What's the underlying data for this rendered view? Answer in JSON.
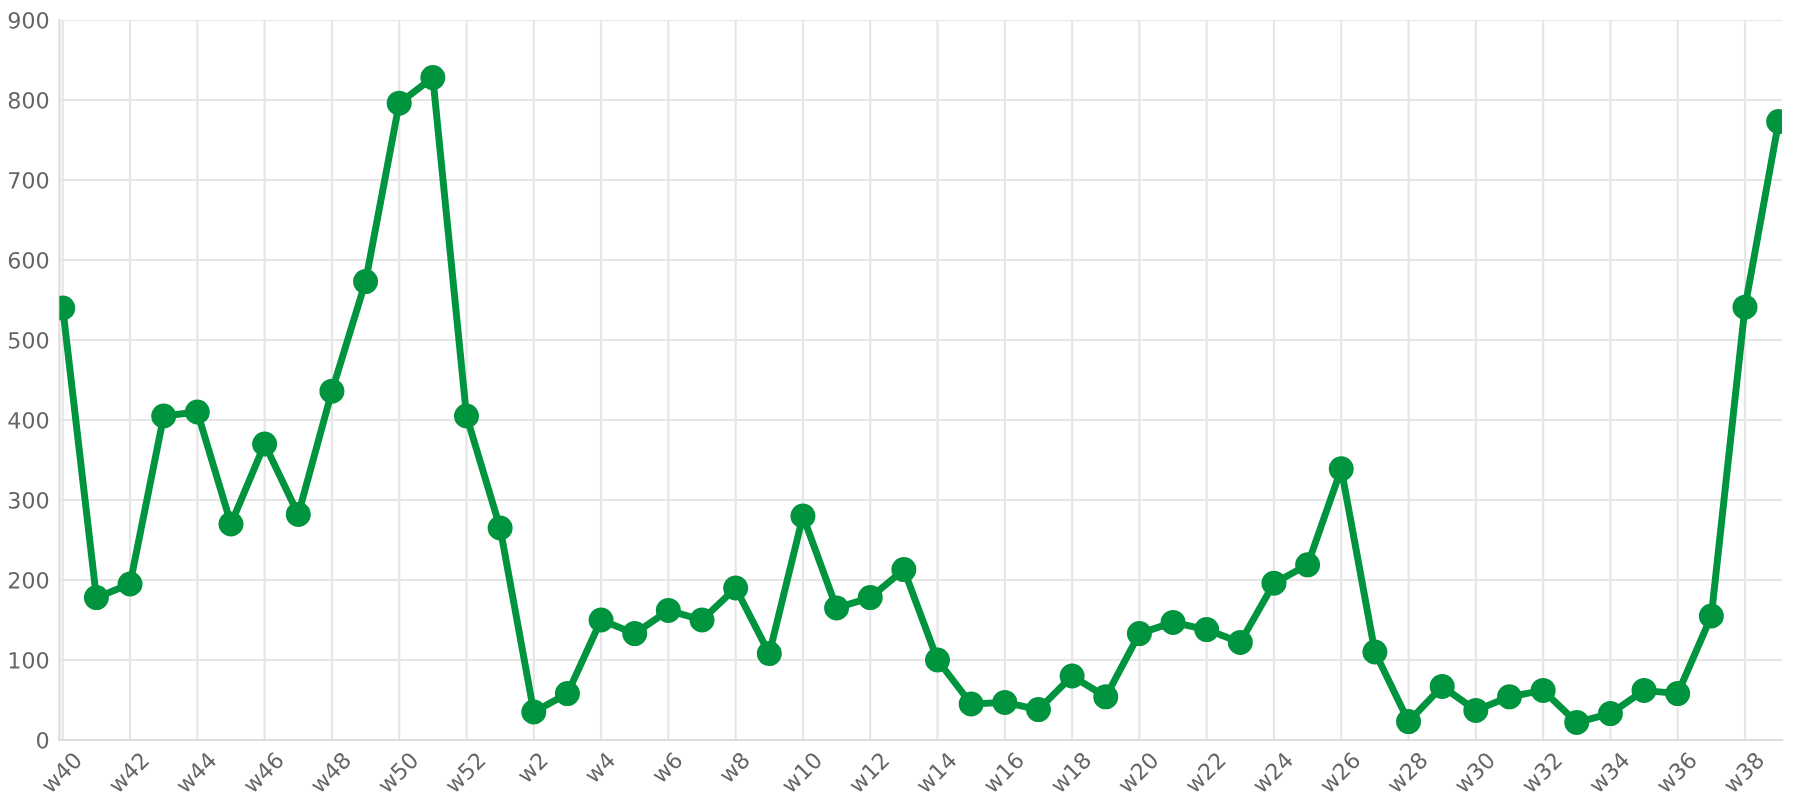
{
  "chart_data": {
    "type": "line",
    "categories": [
      "w40",
      null,
      "w42",
      null,
      "w44",
      null,
      "w46",
      null,
      "w48",
      null,
      "w50",
      null,
      "w52",
      null,
      "w2",
      null,
      "w4",
      null,
      "w6",
      null,
      "w8",
      null,
      "w10",
      null,
      "w12",
      null,
      "w14",
      null,
      "w16",
      null,
      "w18",
      null,
      "w20",
      null,
      "w22",
      null,
      "w24",
      null,
      "w26",
      null,
      "w28",
      null,
      "w30",
      null,
      "w32",
      null,
      "w34",
      null,
      "w36",
      null,
      "w38",
      null
    ],
    "series": [
      {
        "color": "#00943e",
        "values": [
          540,
          178,
          195,
          405,
          410,
          270,
          370,
          282,
          436,
          573,
          796,
          828,
          405,
          265,
          35,
          58,
          150,
          133,
          162,
          150,
          190,
          108,
          280,
          165,
          178,
          213,
          100,
          45,
          47,
          38,
          80,
          54,
          133,
          147,
          138,
          122,
          196,
          219,
          339,
          110,
          23,
          67,
          37,
          54,
          62,
          22,
          33,
          62,
          58,
          155,
          541,
          773
        ]
      }
    ],
    "ylim": [
      0,
      900
    ],
    "yticks": [
      0,
      100,
      200,
      300,
      400,
      500,
      600,
      700,
      800,
      900
    ],
    "grid": true,
    "marker": "circle",
    "line_style": "solid",
    "legend": false
  }
}
